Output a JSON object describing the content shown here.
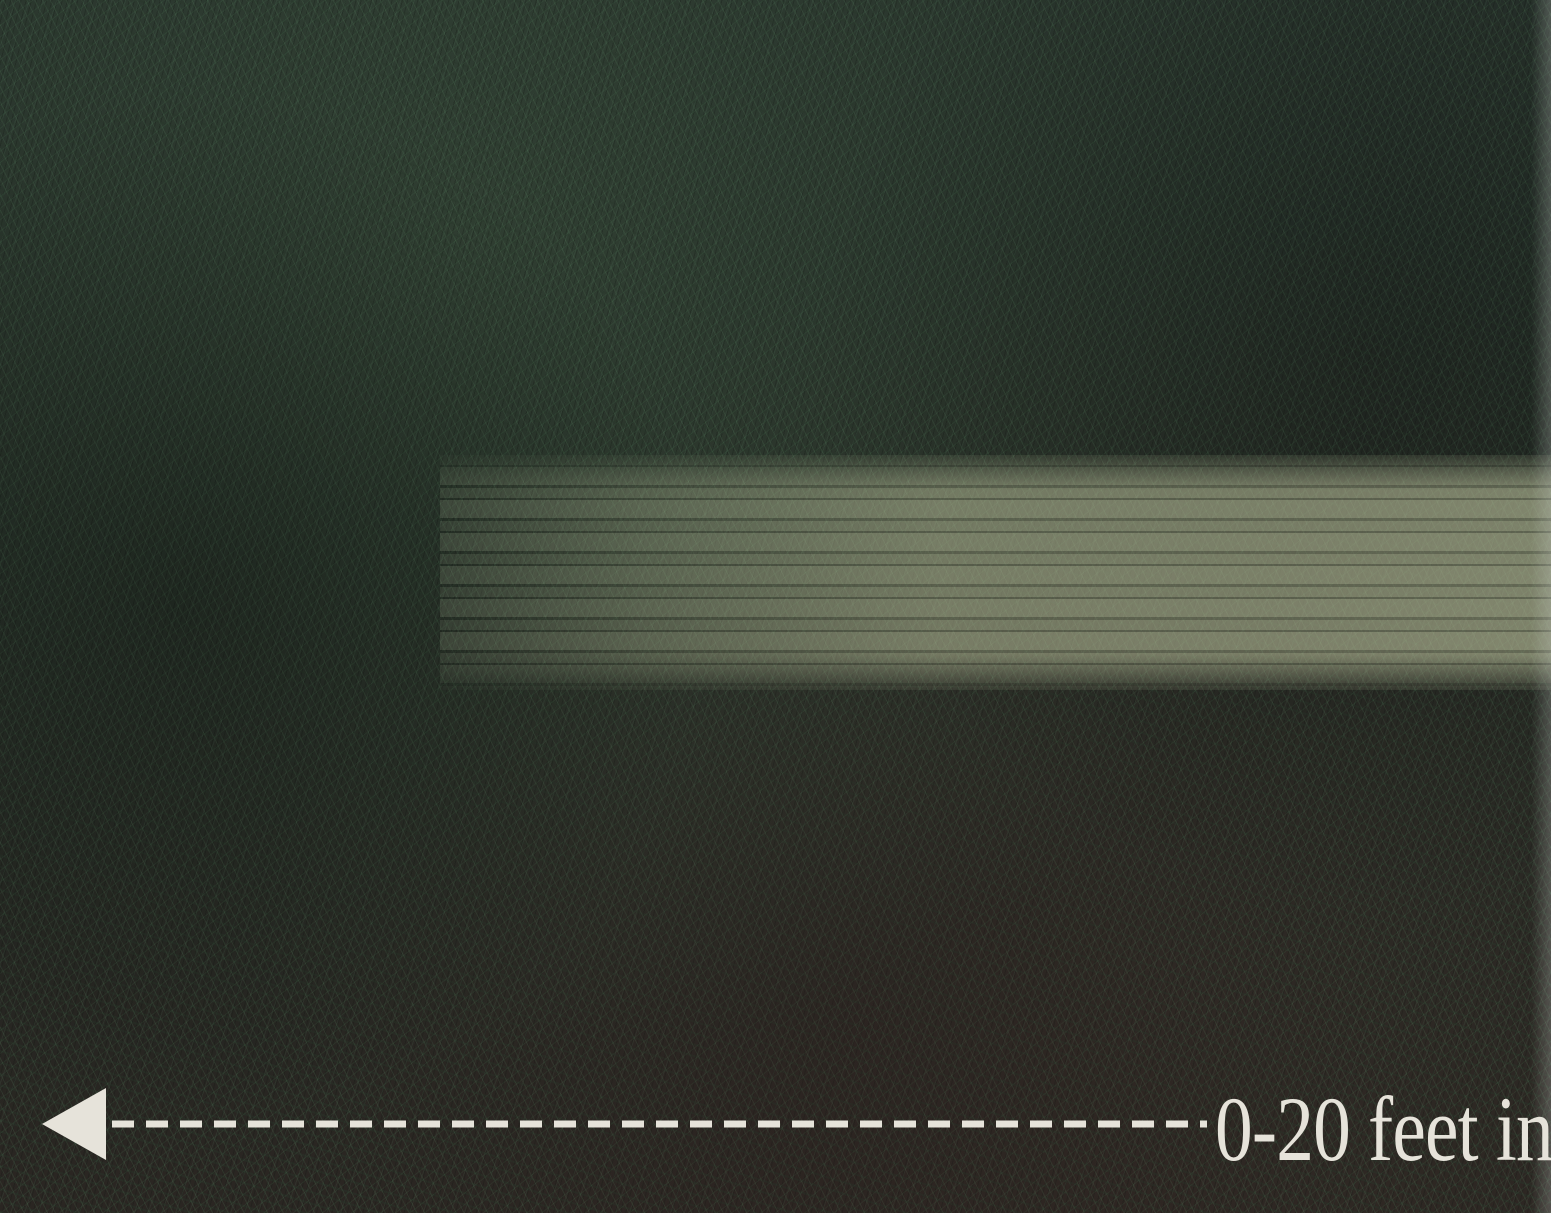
{
  "caption": "0-20 feet in",
  "colors": {
    "grass": "#26302a",
    "streak": "#c8cda5",
    "arrow": "#e6e3da"
  },
  "icons": {
    "arrow": "left-arrow-icon"
  }
}
